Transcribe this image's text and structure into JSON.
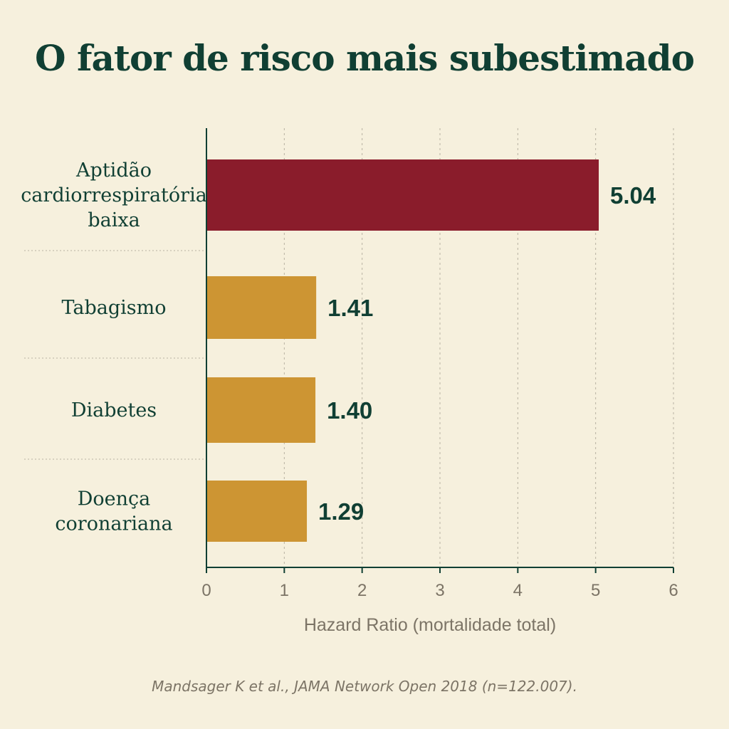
{
  "colors": {
    "background": "#f6f0dd",
    "title": "#103f33",
    "highlight_bar": "#8a1c2b",
    "bar": "#cd9533",
    "axis": "#103f33",
    "grid": "#b8b2a2",
    "tick_text": "#7c7466",
    "category_text": "#103f33"
  },
  "title": "O fator de risco mais subestimado",
  "source": "Mandsager K et al., JAMA Network Open 2018 (n=122.007).",
  "chart_data": {
    "type": "bar",
    "orientation": "horizontal",
    "title": "O fator de risco mais subestimado",
    "xlabel": "Hazard Ratio (mortalidade total)",
    "ylabel": "",
    "xlim": [
      0,
      6
    ],
    "xticks": [
      "0",
      "1",
      "2",
      "3",
      "4",
      "5",
      "6"
    ],
    "grid": "vertical dashed",
    "categories": [
      [
        "Aptidão",
        "cardiorrespiratória",
        "baixa"
      ],
      [
        "Tabagismo"
      ],
      [
        "Diabetes"
      ],
      [
        "Doença",
        "coronariana"
      ]
    ],
    "values": [
      5.04,
      1.41,
      1.4,
      1.29
    ],
    "value_labels": [
      "5.04",
      "1.41",
      "1.40",
      "1.29"
    ],
    "highlighted_index": 0
  }
}
